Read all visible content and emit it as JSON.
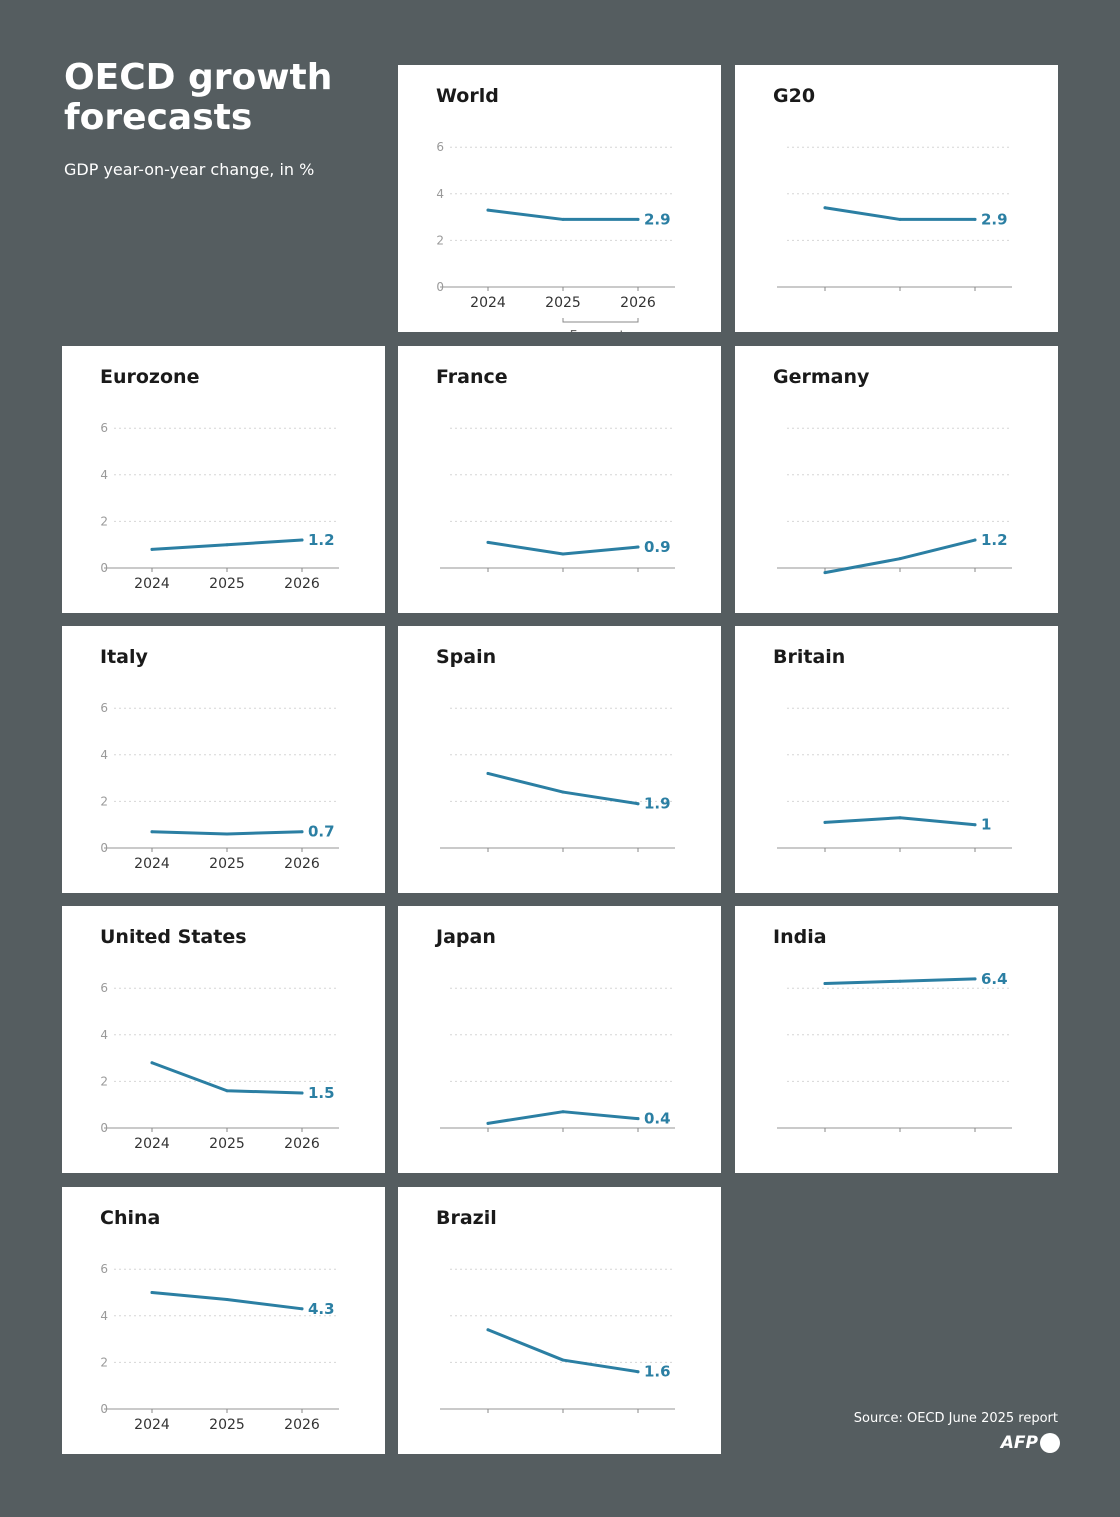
{
  "header": {
    "title": "OECD growth forecasts",
    "subtitle": "GDP year-on-year change, in %"
  },
  "footer": {
    "source": "Source: OECD June 2025 report",
    "logo": "AFP"
  },
  "colors": {
    "background": "#555d60",
    "panel": "#ffffff",
    "line": "#2b7fa3",
    "text": "#1a1a1a",
    "axis": "#8a8a8a"
  },
  "chart_data": [
    {
      "type": "line",
      "title": "World",
      "x": [
        "2024",
        "2025",
        "2026"
      ],
      "values": [
        3.3,
        2.9,
        2.9
      ],
      "end_label": "2.9",
      "ylim": [
        0,
        6
      ],
      "yticks": [
        "0",
        "2",
        "4",
        "6"
      ],
      "show_yticks": true,
      "show_xticks": true,
      "annotation": "Forecasts"
    },
    {
      "type": "line",
      "title": "G20",
      "x": [
        "2024",
        "2025",
        "2026"
      ],
      "values": [
        3.4,
        2.9,
        2.9
      ],
      "end_label": "2.9",
      "ylim": [
        0,
        6
      ],
      "yticks": [
        "0",
        "2",
        "4",
        "6"
      ],
      "show_yticks": false,
      "show_xticks": false
    },
    {
      "type": "line",
      "title": "Eurozone",
      "x": [
        "2024",
        "2025",
        "2026"
      ],
      "values": [
        0.8,
        1.0,
        1.2
      ],
      "end_label": "1.2",
      "ylim": [
        0,
        6
      ],
      "yticks": [
        "0",
        "2",
        "4",
        "6"
      ],
      "show_yticks": true,
      "show_xticks": true
    },
    {
      "type": "line",
      "title": "France",
      "x": [
        "2024",
        "2025",
        "2026"
      ],
      "values": [
        1.1,
        0.6,
        0.9
      ],
      "end_label": "0.9",
      "ylim": [
        0,
        6
      ],
      "yticks": [
        "0",
        "2",
        "4",
        "6"
      ],
      "show_yticks": false,
      "show_xticks": false
    },
    {
      "type": "line",
      "title": "Germany",
      "x": [
        "2024",
        "2025",
        "2026"
      ],
      "values": [
        -0.2,
        0.4,
        1.2
      ],
      "end_label": "1.2",
      "ylim": [
        0,
        6
      ],
      "yticks": [
        "0",
        "2",
        "4",
        "6"
      ],
      "show_yticks": false,
      "show_xticks": false
    },
    {
      "type": "line",
      "title": "Italy",
      "x": [
        "2024",
        "2025",
        "2026"
      ],
      "values": [
        0.7,
        0.6,
        0.7
      ],
      "end_label": "0.7",
      "ylim": [
        0,
        6
      ],
      "yticks": [
        "0",
        "2",
        "4",
        "6"
      ],
      "show_yticks": true,
      "show_xticks": true
    },
    {
      "type": "line",
      "title": "Spain",
      "x": [
        "2024",
        "2025",
        "2026"
      ],
      "values": [
        3.2,
        2.4,
        1.9
      ],
      "end_label": "1.9",
      "ylim": [
        0,
        6
      ],
      "yticks": [
        "0",
        "2",
        "4",
        "6"
      ],
      "show_yticks": false,
      "show_xticks": false
    },
    {
      "type": "line",
      "title": "Britain",
      "x": [
        "2024",
        "2025",
        "2026"
      ],
      "values": [
        1.1,
        1.3,
        1.0
      ],
      "end_label": "1",
      "ylim": [
        0,
        6
      ],
      "yticks": [
        "0",
        "2",
        "4",
        "6"
      ],
      "show_yticks": false,
      "show_xticks": false
    },
    {
      "type": "line",
      "title": "United States",
      "x": [
        "2024",
        "2025",
        "2026"
      ],
      "values": [
        2.8,
        1.6,
        1.5
      ],
      "end_label": "1.5",
      "ylim": [
        0,
        6
      ],
      "yticks": [
        "0",
        "2",
        "4",
        "6"
      ],
      "show_yticks": true,
      "show_xticks": true
    },
    {
      "type": "line",
      "title": "Japan",
      "x": [
        "2024",
        "2025",
        "2026"
      ],
      "values": [
        0.2,
        0.7,
        0.4
      ],
      "end_label": "0.4",
      "ylim": [
        0,
        6
      ],
      "yticks": [
        "0",
        "2",
        "4",
        "6"
      ],
      "show_yticks": false,
      "show_xticks": false
    },
    {
      "type": "line",
      "title": "India",
      "x": [
        "2024",
        "2025",
        "2026"
      ],
      "values": [
        6.2,
        6.3,
        6.4
      ],
      "end_label": "6.4",
      "ylim": [
        0,
        6
      ],
      "yticks": [
        "0",
        "2",
        "4",
        "6"
      ],
      "show_yticks": false,
      "show_xticks": false
    },
    {
      "type": "line",
      "title": "China",
      "x": [
        "2024",
        "2025",
        "2026"
      ],
      "values": [
        5.0,
        4.7,
        4.3
      ],
      "end_label": "4.3",
      "ylim": [
        0,
        6
      ],
      "yticks": [
        "0",
        "2",
        "4",
        "6"
      ],
      "show_yticks": true,
      "show_xticks": true
    },
    {
      "type": "line",
      "title": "Brazil",
      "x": [
        "2024",
        "2025",
        "2026"
      ],
      "values": [
        3.4,
        2.1,
        1.6
      ],
      "end_label": "1.6",
      "ylim": [
        0,
        6
      ],
      "yticks": [
        "0",
        "2",
        "4",
        "6"
      ],
      "show_yticks": false,
      "show_xticks": false
    }
  ]
}
